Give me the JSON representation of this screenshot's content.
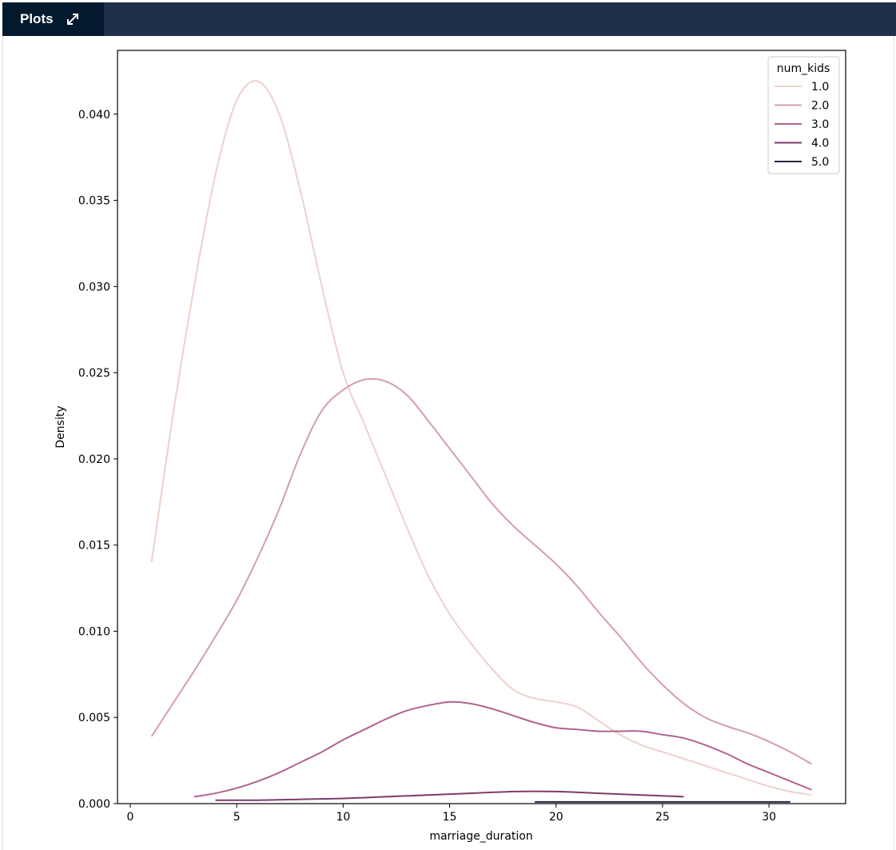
{
  "panel": {
    "tab_label": "Plots",
    "expand_icon": "expand-icon"
  },
  "colors": {
    "header_bg": "#1f304b",
    "tab_bg": "#031a2e"
  },
  "chart_data": {
    "type": "line",
    "title": "",
    "xlabel": "marriage_duration",
    "ylabel": "Density",
    "xlim": [
      -0.6,
      33.6
    ],
    "ylim": [
      0,
      0.0437
    ],
    "x_ticks": [
      0,
      5,
      10,
      15,
      20,
      25,
      30
    ],
    "y_ticks": [
      0.0,
      0.005,
      0.01,
      0.015,
      0.02,
      0.025,
      0.03,
      0.035,
      0.04
    ],
    "y_tick_labels": [
      "0.000",
      "0.005",
      "0.010",
      "0.015",
      "0.020",
      "0.025",
      "0.030",
      "0.035",
      "0.040"
    ],
    "grid": false,
    "legend": {
      "title": "num_kids",
      "placement": "top-right"
    },
    "series": [
      {
        "name": "1.0",
        "color": "#edd1cb",
        "x": [
          1,
          2,
          3,
          4,
          5,
          6,
          7,
          8,
          9,
          10,
          11,
          12,
          13,
          14,
          15,
          16,
          17,
          18,
          19,
          20,
          21,
          22,
          23,
          24,
          25,
          26,
          27,
          28,
          29,
          30,
          31,
          32
        ],
        "y": [
          0.014,
          0.0225,
          0.03,
          0.0365,
          0.0408,
          0.0419,
          0.04,
          0.0355,
          0.03,
          0.025,
          0.022,
          0.019,
          0.016,
          0.0132,
          0.011,
          0.0093,
          0.0078,
          0.0066,
          0.0061,
          0.0059,
          0.0056,
          0.0048,
          0.004,
          0.0034,
          0.003,
          0.0026,
          0.0022,
          0.0018,
          0.0014,
          0.001,
          0.0007,
          0.0005
        ]
      },
      {
        "name": "2.0",
        "color": "#d49cb4",
        "x": [
          1,
          2,
          3,
          4,
          5,
          6,
          7,
          8,
          9,
          10,
          11,
          12,
          13,
          14,
          15,
          16,
          17,
          18,
          19,
          20,
          21,
          22,
          23,
          24,
          25,
          26,
          27,
          28,
          29,
          30,
          31,
          32
        ],
        "y": [
          0.0039,
          0.0058,
          0.0077,
          0.0097,
          0.0118,
          0.0143,
          0.0171,
          0.0203,
          0.0228,
          0.024,
          0.0246,
          0.0245,
          0.0237,
          0.0222,
          0.0206,
          0.019,
          0.0174,
          0.0161,
          0.015,
          0.0139,
          0.0126,
          0.0111,
          0.0097,
          0.0082,
          0.0069,
          0.0058,
          0.005,
          0.0045,
          0.0041,
          0.0036,
          0.003,
          0.0023
        ]
      },
      {
        "name": "3.0",
        "color": "#b3628f",
        "x": [
          3,
          4,
          5,
          6,
          7,
          8,
          9,
          10,
          11,
          12,
          13,
          14,
          15,
          16,
          17,
          18,
          19,
          20,
          21,
          22,
          23,
          24,
          25,
          26,
          27,
          28,
          29,
          30,
          31,
          32
        ],
        "y": [
          0.0004,
          0.0006,
          0.0009,
          0.0013,
          0.0018,
          0.0024,
          0.003,
          0.0037,
          0.0043,
          0.0049,
          0.0054,
          0.0057,
          0.0059,
          0.0058,
          0.0055,
          0.0051,
          0.0047,
          0.0044,
          0.0043,
          0.0042,
          0.0042,
          0.0042,
          0.004,
          0.0038,
          0.0034,
          0.0029,
          0.0023,
          0.0018,
          0.0013,
          0.0008
        ]
      },
      {
        "name": "4.0",
        "color": "#7d3b6e",
        "x": [
          4,
          6,
          8,
          10,
          12,
          14,
          16,
          18,
          20,
          22,
          24,
          26
        ],
        "y": [
          0.0002,
          0.0002,
          0.00025,
          0.0003,
          0.0004,
          0.0005,
          0.0006,
          0.0007,
          0.0007,
          0.0006,
          0.0005,
          0.0004
        ]
      },
      {
        "name": "5.0",
        "color": "#2b2544",
        "x": [
          19,
          21,
          23,
          25,
          27,
          29,
          31
        ],
        "y": [
          0.0001,
          0.0001,
          0.0001,
          0.0001,
          0.0001,
          0.0001,
          0.0001
        ]
      }
    ]
  }
}
